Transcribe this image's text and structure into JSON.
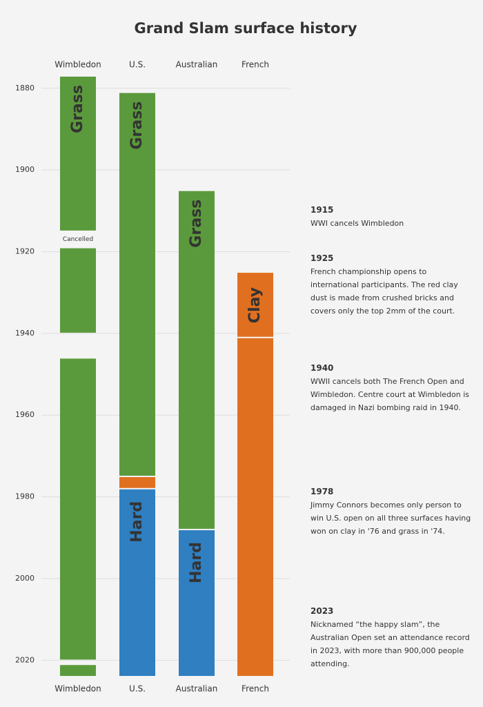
{
  "chart_data": {
    "type": "range",
    "title": "Grand Slam surface history",
    "ylim": [
      1877,
      2024
    ],
    "yticks": [
      1880,
      1900,
      1920,
      1940,
      1960,
      1980,
      2000,
      2020
    ],
    "grid": true,
    "categories": [
      "Wimbledon",
      "U.S.",
      "Australian",
      "French"
    ],
    "series": [
      {
        "name": "Wimbledon",
        "segments": [
          {
            "start": 1877,
            "end": 1915,
            "color": "#5b9a3c",
            "label": "Grass"
          },
          {
            "start": 1919,
            "end": 1940,
            "color": "#5b9a3c"
          },
          {
            "start": 1946,
            "end": 2020,
            "color": "#5b9a3c"
          },
          {
            "start": 2021,
            "end": 2024,
            "color": "#5b9a3c"
          }
        ],
        "note": {
          "text": "Cancelled",
          "start": 1915,
          "end": 1919
        }
      },
      {
        "name": "U.S.",
        "segments": [
          {
            "start": 1881,
            "end": 1975,
            "color": "#5b9a3c",
            "label": "Grass"
          },
          {
            "start": 1975,
            "end": 1978,
            "color": "#e0701f"
          },
          {
            "start": 1978,
            "end": 2024,
            "color": "#2f7fc1",
            "label": "Hard"
          }
        ]
      },
      {
        "name": "Australian",
        "segments": [
          {
            "start": 1905,
            "end": 1988,
            "color": "#5b9a3c",
            "label": "Grass"
          },
          {
            "start": 1988,
            "end": 2024,
            "color": "#2f7fc1",
            "label": "Hard"
          }
        ]
      },
      {
        "name": "French",
        "segments": [
          {
            "start": 1925,
            "end": 1941,
            "color": "#e0701f",
            "label": "Clay"
          },
          {
            "start": 1941,
            "end": 2024,
            "color": "#e0701f"
          }
        ]
      }
    ],
    "events": [
      {
        "year": 1915,
        "text": "WWI cancels Wimbledon"
      },
      {
        "year": 1925,
        "text": "French championship opens to international participants. The red clay dust is made from crushed bricks and covers only the top 2mm of the court."
      },
      {
        "year": 1940,
        "text": "WWII cancels both The French Open and Wimbledon. Centre court at Wimbledon is damaged in Nazi bombing raid in 1940."
      },
      {
        "year": 1978,
        "text": "Jimmy Connors becomes only person to win U.S. open on all three surfaces having won on clay in '76 and grass in '74."
      },
      {
        "year": 2023,
        "text": "Nicknamed “the happy slam”, the Australian Open set an attendance record in 2023, with more than 900,000 people attending."
      }
    ]
  }
}
